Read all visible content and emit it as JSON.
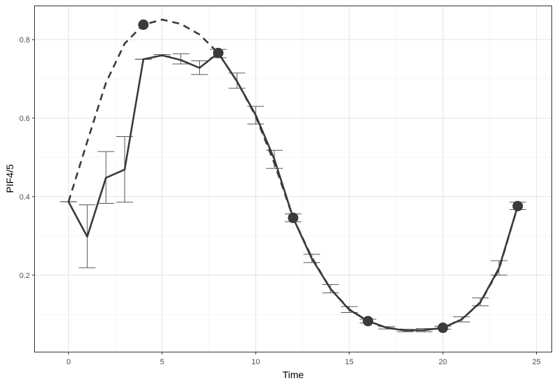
{
  "chart_data": {
    "type": "line",
    "title": "",
    "xlabel": "Time",
    "ylabel": "PIF4/5",
    "xlim": [
      -1.8,
      25.8
    ],
    "ylim": [
      0.005,
      0.885
    ],
    "x_ticks": [
      0,
      5,
      10,
      15,
      20,
      25
    ],
    "y_ticks": [
      0.2,
      0.4,
      0.6,
      0.8
    ],
    "grid": true,
    "legend": "none",
    "colors": {
      "line": "#3a3a3a",
      "points": "#3a3a3a",
      "errorbars": "#555555",
      "grid_major": "#e3e3e3",
      "grid_minor": "#f1f1f1",
      "panel_border": "#333333"
    },
    "series": [
      {
        "style": "solid",
        "x": [
          0,
          1,
          2,
          3,
          4,
          5,
          6,
          7,
          8,
          9,
          10,
          11,
          12,
          13,
          14,
          15,
          16,
          17,
          18,
          19,
          20,
          21,
          22,
          23,
          24
        ],
        "values": [
          0.387,
          0.298,
          0.448,
          0.469,
          0.75,
          0.76,
          0.748,
          0.728,
          0.766,
          0.694,
          0.608,
          0.495,
          0.346,
          0.242,
          0.165,
          0.112,
          0.083,
          0.066,
          0.059,
          0.06,
          0.066,
          0.087,
          0.131,
          0.218,
          0.376
        ],
        "error_low": [
          0.387,
          0.219,
          0.383,
          0.386,
          0.75,
          0.758,
          0.738,
          0.711,
          0.754,
          0.676,
          0.585,
          0.472,
          0.336,
          0.232,
          0.155,
          0.105,
          0.078,
          0.063,
          0.056,
          0.056,
          0.062,
          0.081,
          0.122,
          0.2,
          0.367
        ],
        "error_high": [
          0.387,
          0.379,
          0.515,
          0.553,
          0.75,
          0.762,
          0.764,
          0.746,
          0.775,
          0.715,
          0.63,
          0.518,
          0.356,
          0.253,
          0.176,
          0.12,
          0.088,
          0.069,
          0.062,
          0.064,
          0.07,
          0.094,
          0.142,
          0.237,
          0.386
        ]
      },
      {
        "style": "dashed",
        "x": [
          0,
          1,
          2,
          3,
          4,
          5,
          6,
          7,
          8,
          9,
          10,
          11,
          12,
          13,
          14,
          15,
          16,
          17,
          18,
          19,
          20,
          21,
          22,
          23,
          24
        ],
        "values": [
          0.387,
          0.54,
          0.69,
          0.79,
          0.838,
          0.851,
          0.84,
          0.813,
          0.766,
          0.694,
          0.605,
          0.485,
          0.346,
          0.245,
          0.165,
          0.113,
          0.083,
          0.066,
          0.06,
          0.06,
          0.066,
          0.087,
          0.13,
          0.215,
          0.376
        ]
      }
    ],
    "markers": {
      "x": [
        4,
        8,
        12,
        16,
        20,
        24
      ],
      "values": [
        0.838,
        0.766,
        0.346,
        0.083,
        0.066,
        0.376
      ]
    }
  }
}
